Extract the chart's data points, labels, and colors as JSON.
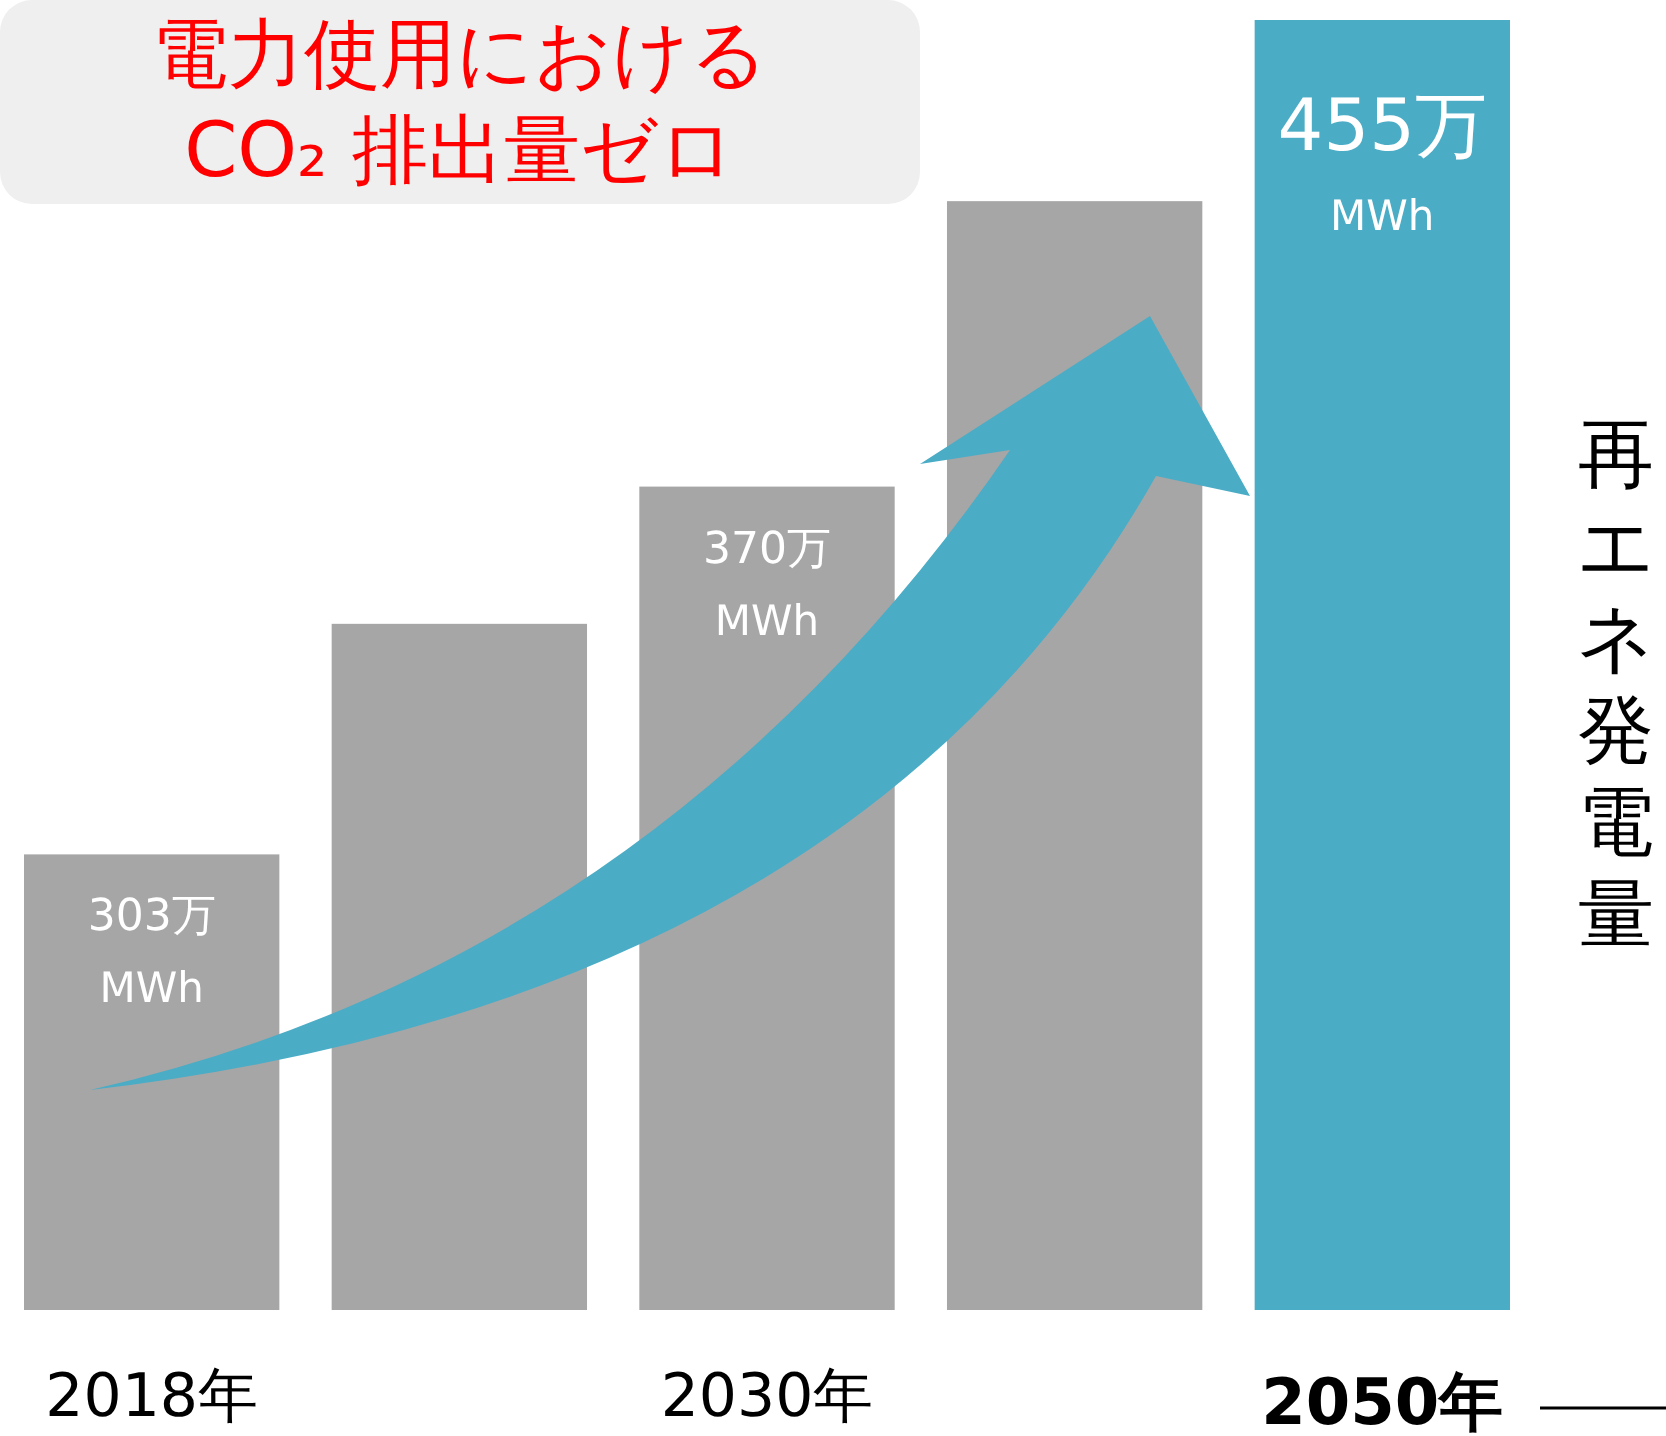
{
  "chart_data": {
    "type": "bar",
    "title": "電力使用における\nCO₂ 排出量ゼロ",
    "ylabel": "再エネ発電量",
    "categories": [
      "2018年",
      null,
      "2030年",
      null,
      "2050年"
    ],
    "values": [
      303,
      345,
      370,
      422,
      455
    ],
    "ylim": [
      220,
      455
    ],
    "colors": [
      "#a6a6a6",
      "#a6a6a6",
      "#a6a6a6",
      "#a6a6a6",
      "#4bacc6"
    ],
    "value_labels": [
      "303万\nMWh",
      null,
      "370万\nMWh",
      null,
      "455万\nMWh"
    ],
    "data_labels": true
  }
}
